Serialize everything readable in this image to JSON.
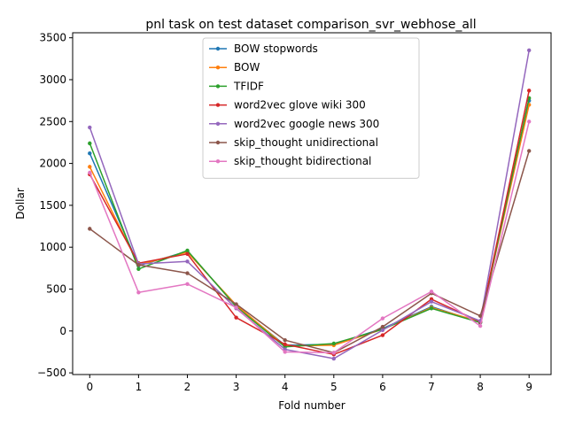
{
  "chart_data": {
    "type": "line",
    "title": "pnl task on test dataset comparison_svr_webhose_all",
    "xlabel": "Fold number",
    "ylabel": "Dollar",
    "x": [
      0,
      1,
      2,
      3,
      4,
      5,
      6,
      7,
      8,
      9
    ],
    "xticks": [
      "0",
      "1",
      "2",
      "3",
      "4",
      "5",
      "6",
      "7",
      "8",
      "9"
    ],
    "yticks": [
      "−500",
      "0",
      "500",
      "1000",
      "1500",
      "2000",
      "2500",
      "3000",
      "3500"
    ],
    "xlim": [
      -0.35,
      9.45
    ],
    "ylim": [
      -520,
      3560
    ],
    "grid": false,
    "legend_position": "top-center",
    "series": [
      {
        "name": "BOW stopwords",
        "color": "#1f77b4",
        "values": [
          2120,
          780,
          950,
          300,
          -170,
          -160,
          30,
          290,
          100,
          2750
        ]
      },
      {
        "name": "BOW",
        "color": "#ff7f0e",
        "values": [
          1960,
          790,
          940,
          310,
          -180,
          -170,
          20,
          280,
          110,
          2700
        ]
      },
      {
        "name": "TFIDF",
        "color": "#2ca02c",
        "values": [
          2240,
          740,
          960,
          290,
          -190,
          -150,
          20,
          270,
          100,
          2780
        ]
      },
      {
        "name": "word2vec glove wiki 300",
        "color": "#d62728",
        "values": [
          1870,
          810,
          920,
          160,
          -160,
          -280,
          -50,
          380,
          110,
          2870
        ]
      },
      {
        "name": "word2vec google news 300",
        "color": "#9467bd",
        "values": [
          2430,
          800,
          830,
          270,
          -220,
          -330,
          10,
          350,
          120,
          3350
        ]
      },
      {
        "name": "skip_thought unidirectional",
        "color": "#8c564b",
        "values": [
          1220,
          790,
          690,
          320,
          -110,
          -260,
          50,
          450,
          180,
          2150
        ]
      },
      {
        "name": "skip_thought bidirectional",
        "color": "#e377c2",
        "values": [
          1890,
          460,
          560,
          280,
          -250,
          -260,
          150,
          470,
          60,
          2500
        ]
      }
    ]
  }
}
